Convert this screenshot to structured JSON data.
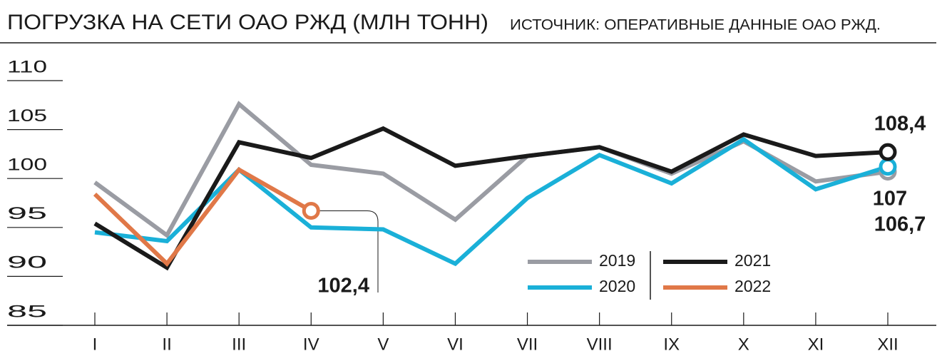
{
  "chart_data": {
    "type": "line",
    "title": "ПОГРУЗКА НА СЕТИ ОАО РЖД (МЛН ТОНН)",
    "subtitle": "ИСТОЧНИК: ОПЕРАТИВНЫЕ ДАННЫЕ ОАО РЖД.",
    "categories": [
      "I",
      "II",
      "III",
      "IV",
      "V",
      "VI",
      "VII",
      "VIII",
      "IX",
      "X",
      "XI",
      "XII"
    ],
    "series": [
      {
        "name": "2019",
        "color": "#9a9ca3",
        "values": [
          99.6,
          94.2,
          107.6,
          101.4,
          100.5,
          95.8,
          102.3,
          103.2,
          100.5,
          103.8,
          99.7,
          100.7
        ]
      },
      {
        "name": "2020",
        "color": "#1ab0d8",
        "values": [
          94.5,
          93.6,
          100.9,
          95.0,
          94.8,
          91.3,
          98.0,
          102.4,
          99.5,
          104.0,
          98.9,
          101.2
        ]
      },
      {
        "name": "2021",
        "color": "#1a1a1a",
        "values": [
          95.4,
          90.9,
          103.7,
          102.1,
          105.1,
          101.3,
          102.3,
          103.2,
          100.7,
          104.5,
          102.3,
          102.7
        ]
      },
      {
        "name": "2022",
        "color": "#e07848",
        "values": [
          98.4,
          91.3,
          100.9,
          96.7,
          null,
          null,
          null,
          null,
          null,
          null,
          null,
          null
        ]
      }
    ],
    "annotations": [
      "108,4",
      "107",
      "106,7",
      "102,4"
    ],
    "ylim": [
      85,
      110
    ],
    "yticks": [
      85,
      90,
      95,
      100,
      105,
      110
    ]
  }
}
